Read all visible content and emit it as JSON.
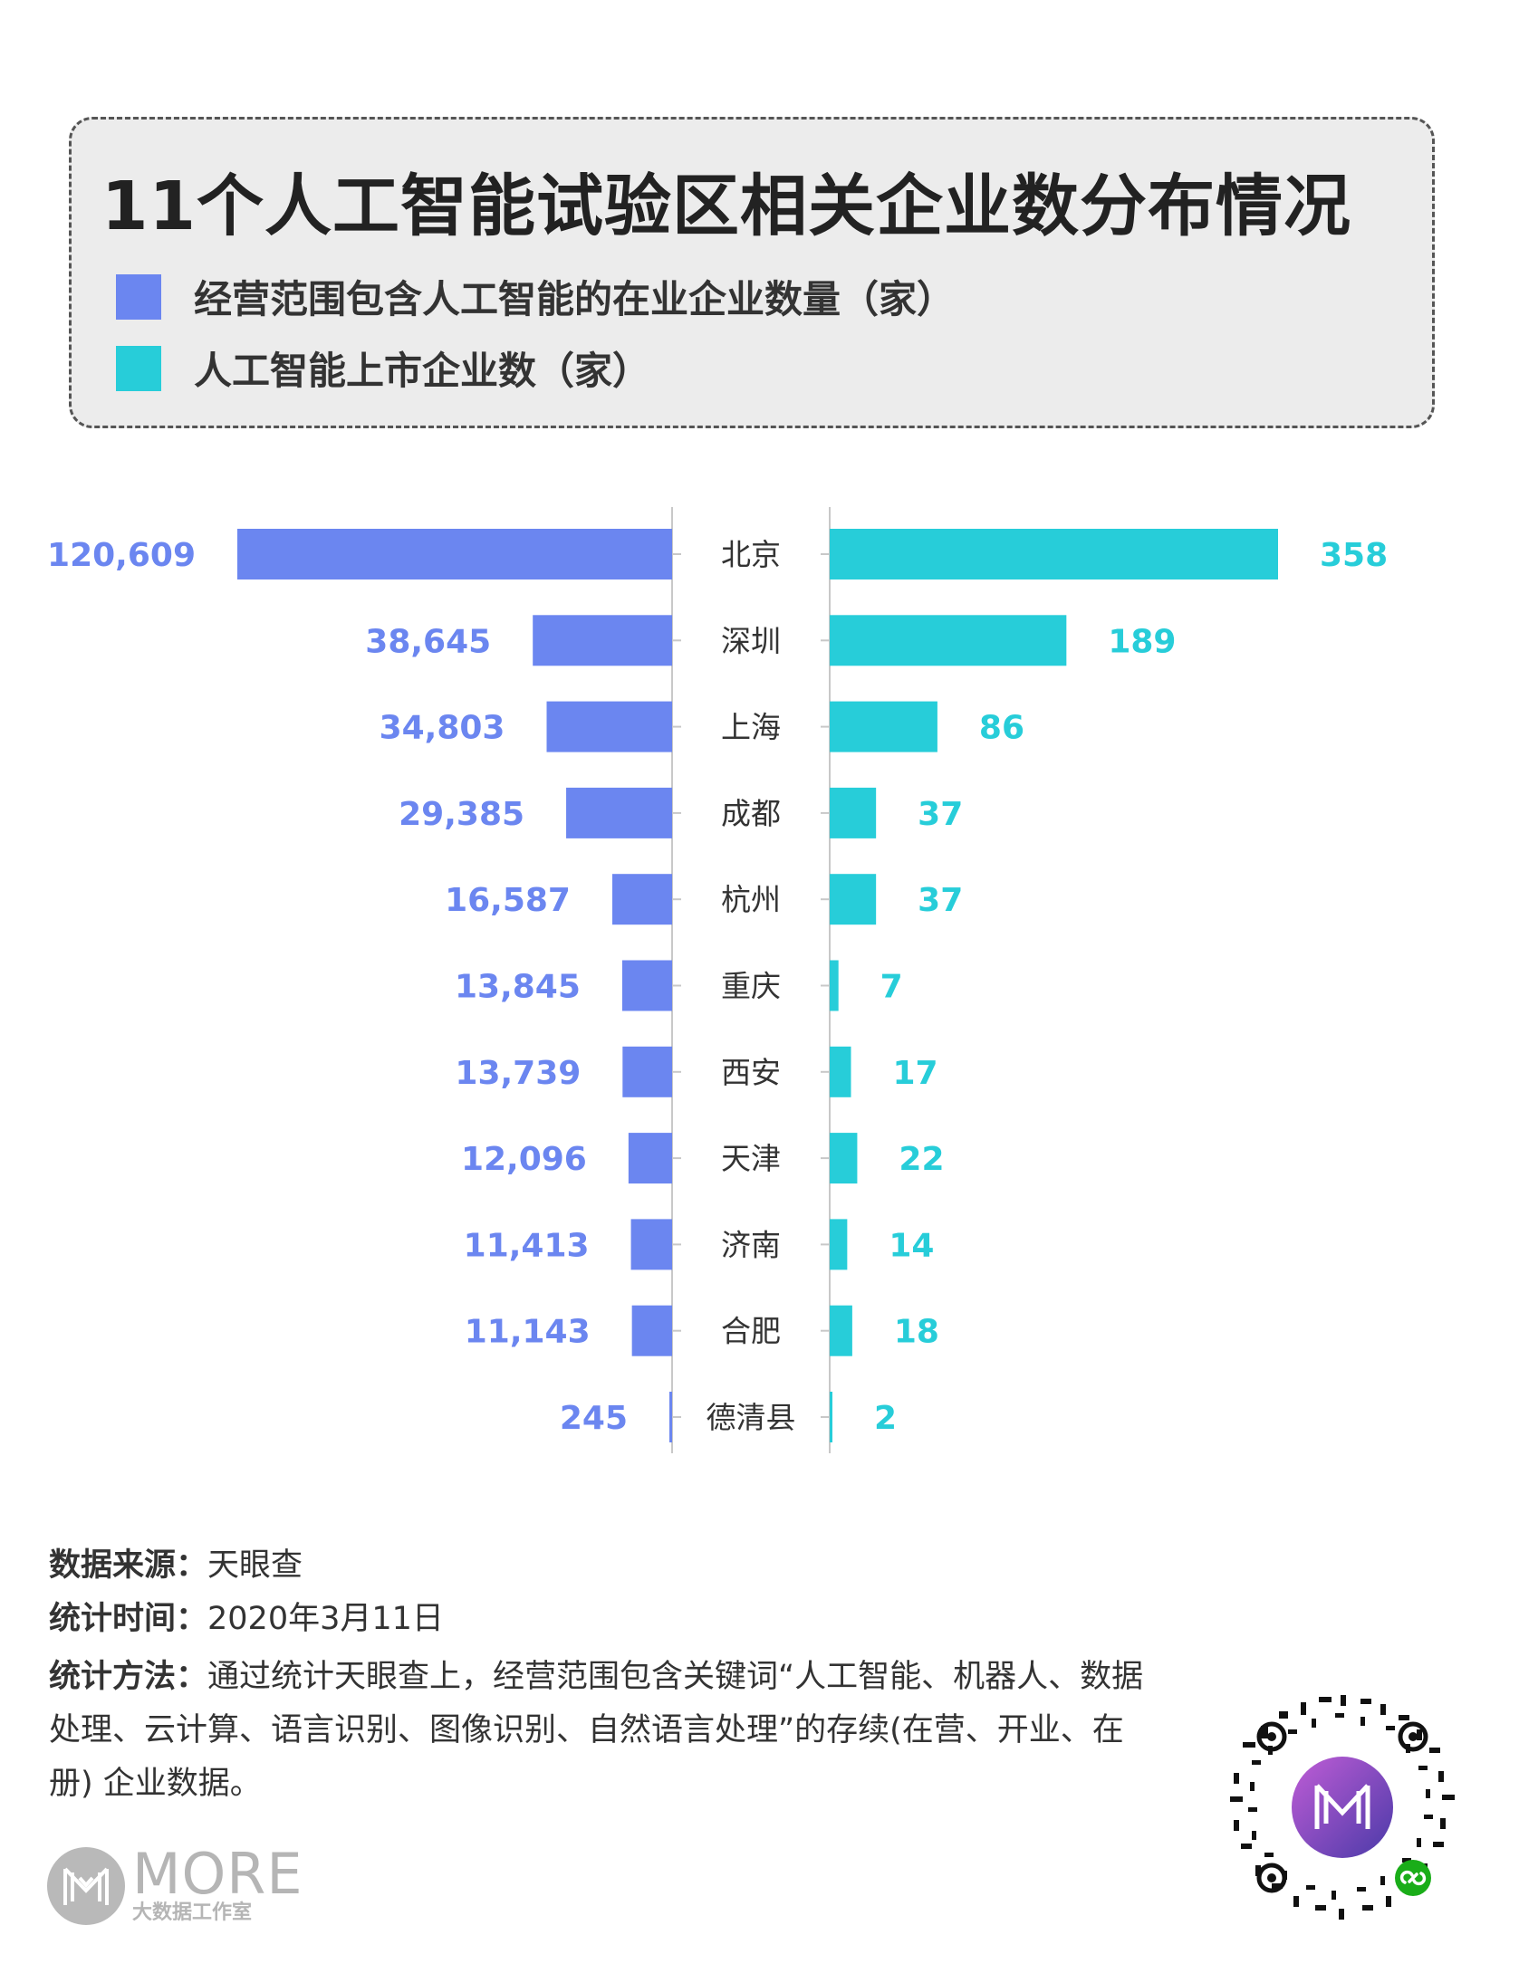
{
  "header": {
    "title": "11个人工智能试验区相关企业数分布情况",
    "legend": [
      {
        "label": "经营范围包含人工智能的在业企业数量（家）",
        "color": "#6b86f0"
      },
      {
        "label": "人工智能上市企业数（家）",
        "color": "#27cdd9"
      }
    ]
  },
  "chart_data": {
    "type": "bar",
    "categories": [
      "北京",
      "深圳",
      "上海",
      "成都",
      "杭州",
      "重庆",
      "西安",
      "天津",
      "济南",
      "合肥",
      "德清县"
    ],
    "series": [
      {
        "name": "经营范围包含人工智能的在业企业数量（家）",
        "values": [
          120609,
          38645,
          34803,
          29385,
          16587,
          13845,
          13739,
          12096,
          11413,
          11143,
          245
        ],
        "labels": [
          "120,609",
          "38,645",
          "34,803",
          "29,385",
          "16,587",
          "13,845",
          "13,739",
          "12,096",
          "11,413",
          "11,143",
          "245"
        ],
        "color": "#6b86f0"
      },
      {
        "name": "人工智能上市企业数（家）",
        "values": [
          358,
          189,
          86,
          37,
          37,
          7,
          17,
          22,
          14,
          18,
          2
        ],
        "labels": [
          "358",
          "189",
          "86",
          "37",
          "37",
          "7",
          "17",
          "22",
          "14",
          "18",
          "2"
        ],
        "color": "#27cdd9"
      }
    ]
  },
  "footer": {
    "source_key": "数据来源：",
    "source_value": "天眼查",
    "time_key": "统计时间：",
    "time_value": "2020年3月11日",
    "method_key": "统计方法：",
    "method_value": "通过统计天眼查上，经营范围包含关键词“人工智能、机器人、数据处理、云计算、语言识别、图像识别、自然语言处理”的存续(在营、开业、在册) 企业数据。"
  },
  "logo": {
    "text": "MORE",
    "subtext": "大数据工作室"
  },
  "icons": {
    "logo": "more-logo-icon",
    "qr": "qr-code-icon"
  }
}
